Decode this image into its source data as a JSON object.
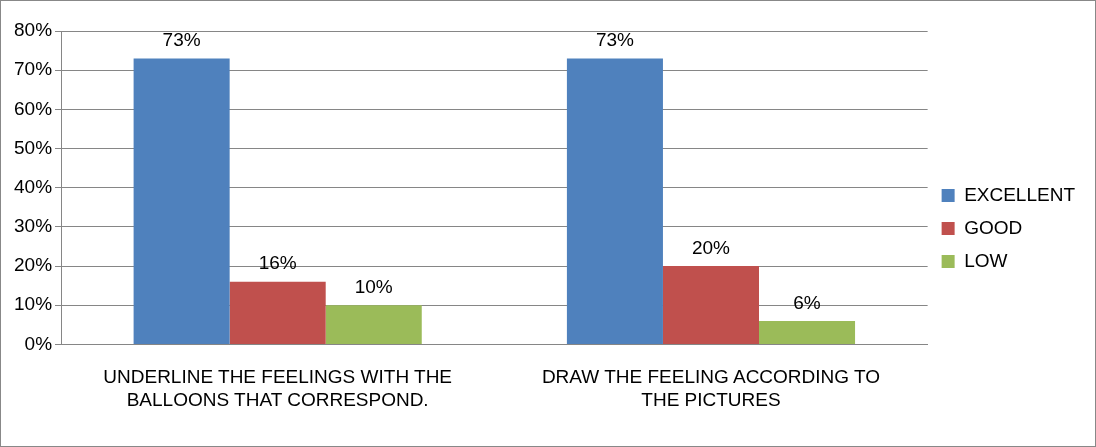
{
  "chart_data": {
    "type": "bar",
    "categories": [
      "UNDERLINE THE FEELINGS WITH THE BALLOONS THAT CORRESPOND.",
      "DRAW THE FEELING ACCORDING TO THE PICTURES"
    ],
    "series": [
      {
        "name": "EXCELLENT",
        "color": "#4f81bd",
        "values": [
          73,
          73
        ],
        "value_labels": [
          "73%",
          "73%"
        ]
      },
      {
        "name": "GOOD",
        "color": "#c0504d",
        "values": [
          16,
          20
        ],
        "value_labels": [
          "16%",
          "20%"
        ]
      },
      {
        "name": "LOW",
        "color": "#9bbb59",
        "values": [
          10,
          6
        ],
        "value_labels": [
          "10%",
          "6%"
        ]
      }
    ],
    "ylim": [
      0,
      80
    ],
    "yticks": [
      {
        "value": 0,
        "label": "0%"
      },
      {
        "value": 10,
        "label": "10%"
      },
      {
        "value": 20,
        "label": "20%"
      },
      {
        "value": 30,
        "label": "30%"
      },
      {
        "value": 40,
        "label": "40%"
      },
      {
        "value": 50,
        "label": "50%"
      },
      {
        "value": 60,
        "label": "60%"
      },
      {
        "value": 70,
        "label": "70%"
      },
      {
        "value": 80,
        "label": "80%"
      }
    ],
    "grid": "y",
    "legend": "right"
  }
}
